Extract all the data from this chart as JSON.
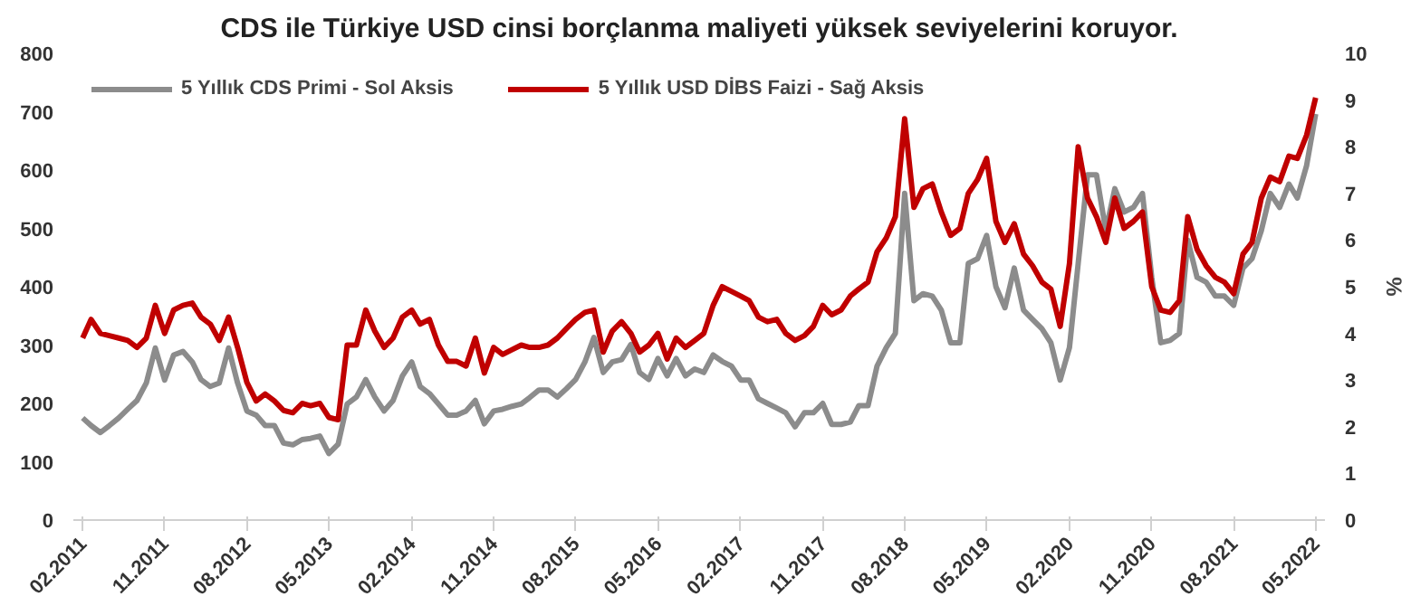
{
  "chart_data": {
    "type": "line",
    "title": "CDS ile Türkiye USD cinsi borçlanma maliyeti yüksek seviyelerini koruyor.",
    "y2label": "%",
    "x": [
      "2011-02",
      "2011-03",
      "2011-04",
      "2011-05",
      "2011-06",
      "2011-07",
      "2011-08",
      "2011-09",
      "2011-10",
      "2011-11",
      "2011-12",
      "2012-01",
      "2012-02",
      "2012-03",
      "2012-04",
      "2012-05",
      "2012-06",
      "2012-07",
      "2012-08",
      "2012-09",
      "2012-10",
      "2012-11",
      "2012-12",
      "2013-01",
      "2013-02",
      "2013-03",
      "2013-04",
      "2013-05",
      "2013-06",
      "2013-07",
      "2013-08",
      "2013-09",
      "2013-10",
      "2013-11",
      "2013-12",
      "2014-01",
      "2014-02",
      "2014-03",
      "2014-04",
      "2014-05",
      "2014-06",
      "2014-07",
      "2014-08",
      "2014-09",
      "2014-10",
      "2014-11",
      "2014-12",
      "2015-01",
      "2015-02",
      "2015-03",
      "2015-04",
      "2015-05",
      "2015-06",
      "2015-07",
      "2015-08",
      "2015-09",
      "2015-10",
      "2015-11",
      "2015-12",
      "2016-01",
      "2016-02",
      "2016-03",
      "2016-04",
      "2016-05",
      "2016-06",
      "2016-07",
      "2016-08",
      "2016-09",
      "2016-10",
      "2016-11",
      "2016-12",
      "2017-01",
      "2017-02",
      "2017-03",
      "2017-04",
      "2017-05",
      "2017-06",
      "2017-07",
      "2017-08",
      "2017-09",
      "2017-10",
      "2017-11",
      "2017-12",
      "2018-01",
      "2018-02",
      "2018-03",
      "2018-04",
      "2018-05",
      "2018-06",
      "2018-07",
      "2018-08",
      "2018-09",
      "2018-10",
      "2018-11",
      "2018-12",
      "2019-01",
      "2019-02",
      "2019-03",
      "2019-04",
      "2019-05",
      "2019-06",
      "2019-07",
      "2019-08",
      "2019-09",
      "2019-10",
      "2019-11",
      "2019-12",
      "2020-01",
      "2020-02",
      "2020-03",
      "2020-04",
      "2020-05",
      "2020-06",
      "2020-07",
      "2020-08",
      "2020-09",
      "2020-10",
      "2020-11",
      "2020-12",
      "2021-01",
      "2021-02",
      "2021-03",
      "2021-04",
      "2021-05",
      "2021-06",
      "2021-07",
      "2021-08",
      "2021-09",
      "2021-10",
      "2021-11",
      "2021-12",
      "2022-01",
      "2022-02",
      "2022-03",
      "2022-04",
      "2022-05"
    ],
    "series": [
      {
        "name": "5 Yıllık CDS Primi - Sol Aksis",
        "color": "#8c8c8c",
        "values": [
          175,
          162,
          150,
          162,
          175,
          190,
          205,
          235,
          295,
          240,
          283,
          289,
          271,
          241,
          229,
          235,
          295,
          235,
          187,
          180,
          162,
          162,
          132,
          129,
          138,
          140,
          144,
          114,
          130,
          199,
          211,
          241,
          211,
          187,
          205,
          247,
          271,
          229,
          217,
          199,
          180,
          180,
          187,
          205,
          165,
          187,
          190,
          195,
          199,
          210,
          223,
          223,
          211,
          225,
          241,
          271,
          313,
          253,
          271,
          275,
          301,
          253,
          241,
          277,
          247,
          277,
          247,
          259,
          253,
          283,
          272,
          264,
          240,
          240,
          208,
          200,
          192,
          184,
          160,
          184,
          184,
          200,
          164,
          164,
          168,
          196,
          196,
          264,
          296,
          320,
          560,
          376,
          388,
          384,
          360,
          304,
          304,
          440,
          448,
          488,
          400,
          364,
          432,
          360,
          344,
          328,
          304,
          240,
          296,
          440,
          592,
          592,
          496,
          568,
          528,
          536,
          560,
          416,
          304,
          308,
          320,
          480,
          416,
          408,
          384,
          384,
          368,
          432,
          448,
          496,
          560,
          536,
          576,
          552,
          608,
          696
        ]
      },
      {
        "name": "5 Yıllık USD DİBS Faizi - Sağ Aksis",
        "color": "#c00000",
        "axis": "y2",
        "values": [
          3.9,
          4.3,
          4.0,
          3.95,
          3.9,
          3.85,
          3.7,
          3.9,
          4.6,
          4.0,
          4.5,
          4.6,
          4.65,
          4.35,
          4.2,
          3.85,
          4.35,
          3.7,
          2.95,
          2.55,
          2.7,
          2.55,
          2.35,
          2.3,
          2.5,
          2.45,
          2.5,
          2.2,
          2.15,
          3.75,
          3.75,
          4.5,
          4.05,
          3.7,
          3.9,
          4.35,
          4.5,
          4.2,
          4.3,
          3.75,
          3.4,
          3.4,
          3.3,
          3.9,
          3.15,
          3.7,
          3.55,
          3.65,
          3.75,
          3.7,
          3.7,
          3.75,
          3.9,
          4.1,
          4.3,
          4.45,
          4.5,
          3.6,
          4.05,
          4.25,
          4.0,
          3.6,
          3.75,
          4.0,
          3.45,
          3.9,
          3.7,
          3.85,
          4.0,
          4.6,
          5.0,
          4.9,
          4.8,
          4.7,
          4.35,
          4.25,
          4.3,
          4.0,
          3.85,
          3.95,
          4.15,
          4.6,
          4.4,
          4.5,
          4.8,
          4.95,
          5.1,
          5.75,
          6.05,
          6.5,
          8.6,
          6.7,
          7.1,
          7.2,
          6.6,
          6.1,
          6.25,
          7.0,
          7.3,
          7.75,
          6.4,
          5.95,
          6.35,
          5.7,
          5.45,
          5.1,
          4.95,
          4.15,
          5.5,
          8.0,
          6.9,
          6.5,
          5.95,
          6.9,
          6.25,
          6.4,
          6.6,
          5.0,
          4.5,
          4.45,
          4.7,
          6.5,
          5.8,
          5.45,
          5.2,
          5.1,
          4.85,
          5.7,
          5.95,
          6.9,
          7.35,
          7.25,
          7.8,
          7.75,
          8.25,
          9.05
        ]
      }
    ],
    "xlim": [
      "2011-01",
      "2022-06"
    ],
    "xticks": [
      {
        "value": "2011-02",
        "label": "02.2011"
      },
      {
        "value": "2011-11",
        "label": "11.2011"
      },
      {
        "value": "2012-08",
        "label": "08.2012"
      },
      {
        "value": "2013-05",
        "label": "05.2013"
      },
      {
        "value": "2014-02",
        "label": "02.2014"
      },
      {
        "value": "2014-11",
        "label": "11.2014"
      },
      {
        "value": "2015-08",
        "label": "08.2015"
      },
      {
        "value": "2016-05",
        "label": "05.2016"
      },
      {
        "value": "2017-02",
        "label": "02.2017"
      },
      {
        "value": "2017-11",
        "label": "11.2017"
      },
      {
        "value": "2018-08",
        "label": "08.2018"
      },
      {
        "value": "2019-05",
        "label": "05.2019"
      },
      {
        "value": "2020-02",
        "label": "02.2020"
      },
      {
        "value": "2020-11",
        "label": "11.2020"
      },
      {
        "value": "2021-08",
        "label": "08.2021"
      },
      {
        "value": "2022-05",
        "label": "05.2022"
      }
    ],
    "ylim": [
      0,
      800
    ],
    "yticks": [
      0,
      100,
      200,
      300,
      400,
      500,
      600,
      700,
      800
    ],
    "y2lim": [
      0,
      10
    ],
    "y2ticks": [
      0,
      1,
      2,
      3,
      4,
      5,
      6,
      7,
      8,
      9,
      10
    ],
    "legend": "top left",
    "grid": false,
    "marker": "none",
    "line_style": "solid"
  }
}
